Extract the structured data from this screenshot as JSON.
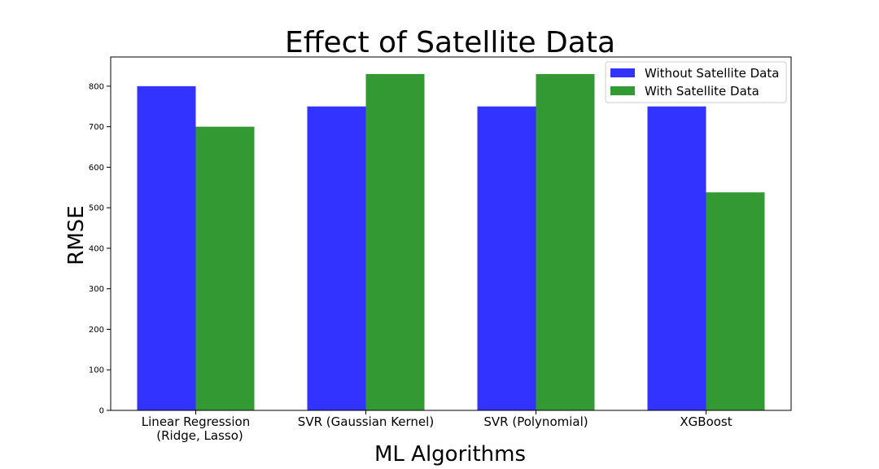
{
  "chart_data": {
    "type": "bar",
    "title": "Effect of Satellite Data",
    "xlabel": "ML Algorithms",
    "ylabel": "RMSE",
    "categories": [
      [
        "Linear Regression",
        "(Ridge, Lasso)"
      ],
      [
        "SVR (Gaussian Kernel)"
      ],
      [
        "SVR (Polynomial)"
      ],
      [
        "XGBoost"
      ]
    ],
    "series": [
      {
        "name": "Without Satellite Data",
        "color": "#3333ff",
        "values": [
          800,
          750,
          750,
          750
        ]
      },
      {
        "name": "With Satellite Data",
        "color": "#339933",
        "values": [
          700,
          830,
          830,
          538
        ]
      }
    ],
    "ylim": [
      0,
      872
    ],
    "yticks": [
      0,
      100,
      200,
      300,
      400,
      500,
      600,
      700,
      800
    ],
    "grid": false,
    "legend_position": "top-right"
  }
}
